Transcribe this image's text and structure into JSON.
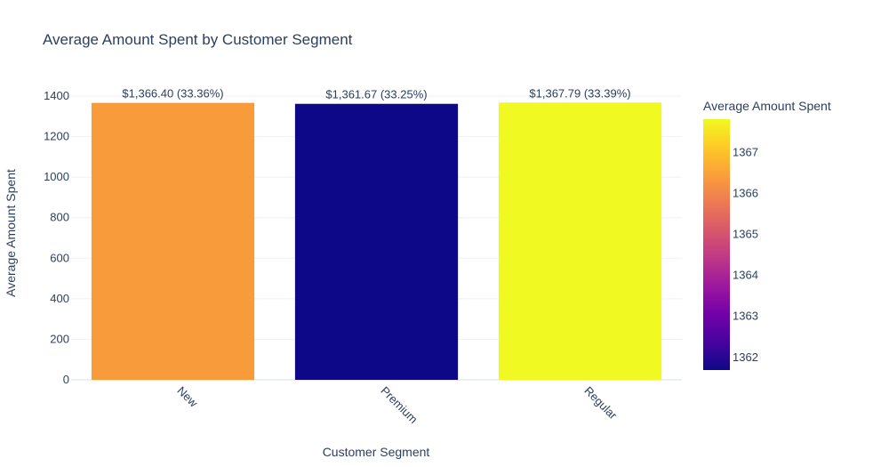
{
  "chart_data": {
    "type": "bar",
    "title": "Average Amount Spent by Customer Segment",
    "xlabel": "Customer Segment",
    "ylabel": "Average Amount Spent",
    "categories": [
      "New",
      "Premium",
      "Regular"
    ],
    "values": [
      1366.4,
      1361.67,
      1367.79
    ],
    "bar_labels": [
      "$1,366.40 (33.36%)",
      "$1,361.67 (33.25%)",
      "$1,367.79 (33.39%)"
    ],
    "bar_colors": [
      "#f89c3b",
      "#0d0887",
      "#f0f921"
    ],
    "ylim": [
      0,
      1400
    ],
    "yticks": [
      0,
      200,
      400,
      600,
      800,
      1000,
      1200,
      1400
    ],
    "grid": true,
    "colorbar": {
      "title": "Average Amount Spent",
      "range": [
        1361.67,
        1367.79
      ],
      "ticks": [
        1362,
        1363,
        1364,
        1365,
        1366,
        1367
      ],
      "colorscale": [
        "#0d0887",
        "#46039f",
        "#7201a8",
        "#9c179e",
        "#bd3786",
        "#d8576b",
        "#ed7953",
        "#fb9f3a",
        "#fdca26",
        "#f0f921"
      ]
    }
  }
}
